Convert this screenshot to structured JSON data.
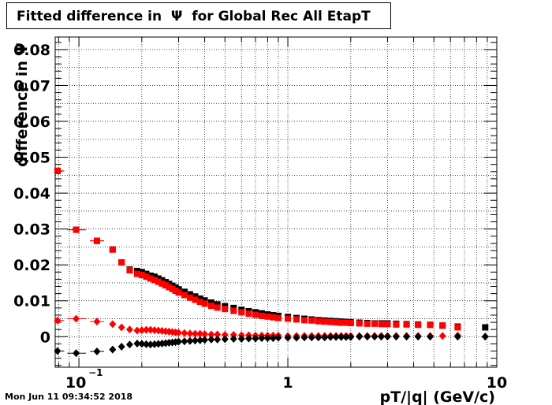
{
  "title": "Fitted difference in  Ψ  for Global Rec All EtapT",
  "footer": "Mon Jun 11 09:34:52 2018",
  "chart_data": {
    "type": "scatter",
    "title": "Fitted difference in  Ψ  for Global Rec All EtapT",
    "xlabel": "pT/|q| (GeV/c)",
    "ylabel": "difference in  Ψ",
    "xscale": "log",
    "xlim": [
      0.077,
      10
    ],
    "ylim": [
      -0.0085,
      0.0835
    ],
    "x_ticks": [
      {
        "value": 0.1,
        "label": "10",
        "sup": "−1"
      },
      {
        "value": 1,
        "label": "1"
      },
      {
        "value": 10,
        "label": "10"
      }
    ],
    "y_ticks": [
      {
        "value": 0,
        "label": "0"
      },
      {
        "value": 0.01,
        "label": "0.01"
      },
      {
        "value": 0.02,
        "label": "0.02"
      },
      {
        "value": 0.03,
        "label": "0.03"
      },
      {
        "value": 0.04,
        "label": "0.04"
      },
      {
        "value": 0.05,
        "label": "0.05"
      },
      {
        "value": 0.06,
        "label": "0.06"
      },
      {
        "value": 0.07,
        "label": "0.07"
      },
      {
        "value": 0.08,
        "label": "0.08"
      }
    ],
    "grid": true,
    "series": [
      {
        "color": "#000000",
        "marker": "square",
        "points": [
          {
            "x": 0.079,
            "y": 0.0462
          },
          {
            "x": 0.097,
            "y": 0.0298
          },
          {
            "x": 0.122,
            "y": 0.0267
          },
          {
            "x": 0.145,
            "y": 0.0243
          },
          {
            "x": 0.16,
            "y": 0.0207
          },
          {
            "x": 0.175,
            "y": 0.0187
          },
          {
            "x": 0.19,
            "y": 0.0183
          },
          {
            "x": 0.2,
            "y": 0.018
          },
          {
            "x": 0.21,
            "y": 0.0175
          },
          {
            "x": 0.22,
            "y": 0.017
          },
          {
            "x": 0.23,
            "y": 0.0167
          },
          {
            "x": 0.24,
            "y": 0.0162
          },
          {
            "x": 0.25,
            "y": 0.0157
          },
          {
            "x": 0.26,
            "y": 0.0152
          },
          {
            "x": 0.27,
            "y": 0.0147
          },
          {
            "x": 0.28,
            "y": 0.0142
          },
          {
            "x": 0.29,
            "y": 0.0137
          },
          {
            "x": 0.3,
            "y": 0.0132
          },
          {
            "x": 0.32,
            "y": 0.0125
          },
          {
            "x": 0.34,
            "y": 0.0118
          },
          {
            "x": 0.36,
            "y": 0.0112
          },
          {
            "x": 0.38,
            "y": 0.0106
          },
          {
            "x": 0.4,
            "y": 0.0101
          },
          {
            "x": 0.43,
            "y": 0.0095
          },
          {
            "x": 0.46,
            "y": 0.009
          },
          {
            "x": 0.5,
            "y": 0.0085
          },
          {
            "x": 0.55,
            "y": 0.008
          },
          {
            "x": 0.6,
            "y": 0.0075
          },
          {
            "x": 0.65,
            "y": 0.0071
          },
          {
            "x": 0.7,
            "y": 0.0068
          },
          {
            "x": 0.75,
            "y": 0.0065
          },
          {
            "x": 0.8,
            "y": 0.0062
          },
          {
            "x": 0.85,
            "y": 0.006
          },
          {
            "x": 0.9,
            "y": 0.0058
          },
          {
            "x": 1.0,
            "y": 0.0055
          },
          {
            "x": 1.1,
            "y": 0.0052
          },
          {
            "x": 1.2,
            "y": 0.005
          },
          {
            "x": 1.3,
            "y": 0.0048
          },
          {
            "x": 1.4,
            "y": 0.0046
          },
          {
            "x": 1.5,
            "y": 0.0045
          },
          {
            "x": 1.6,
            "y": 0.0044
          },
          {
            "x": 1.7,
            "y": 0.0043
          },
          {
            "x": 1.8,
            "y": 0.0042
          },
          {
            "x": 1.9,
            "y": 0.0041
          },
          {
            "x": 2.0,
            "y": 0.004
          },
          {
            "x": 2.2,
            "y": 0.0039
          },
          {
            "x": 2.4,
            "y": 0.0038
          },
          {
            "x": 2.6,
            "y": 0.0037
          },
          {
            "x": 2.8,
            "y": 0.0037
          },
          {
            "x": 3.0,
            "y": 0.0037
          },
          {
            "x": 3.3,
            "y": 0.0036
          },
          {
            "x": 3.7,
            "y": 0.0035
          },
          {
            "x": 4.2,
            "y": 0.0034
          },
          {
            "x": 4.8,
            "y": 0.0033
          },
          {
            "x": 5.5,
            "y": 0.0031
          },
          {
            "x": 6.5,
            "y": 0.0028
          },
          {
            "x": 8.8,
            "y": 0.0026
          }
        ],
        "xerr_points": [
          {
            "x": 0.079,
            "lo": 0.077,
            "hi": 0.085
          },
          {
            "x": 0.097,
            "lo": 0.088,
            "hi": 0.108
          },
          {
            "x": 0.122,
            "lo": 0.113,
            "hi": 0.132
          }
        ]
      },
      {
        "color": "#ff0000",
        "marker": "square",
        "points": [
          {
            "x": 0.079,
            "y": 0.0462
          },
          {
            "x": 0.097,
            "y": 0.0298
          },
          {
            "x": 0.122,
            "y": 0.0267
          },
          {
            "x": 0.145,
            "y": 0.0243
          },
          {
            "x": 0.16,
            "y": 0.0207
          },
          {
            "x": 0.175,
            "y": 0.0185
          },
          {
            "x": 0.19,
            "y": 0.0175
          },
          {
            "x": 0.2,
            "y": 0.0172
          },
          {
            "x": 0.21,
            "y": 0.0167
          },
          {
            "x": 0.22,
            "y": 0.0162
          },
          {
            "x": 0.23,
            "y": 0.0158
          },
          {
            "x": 0.24,
            "y": 0.0153
          },
          {
            "x": 0.25,
            "y": 0.0148
          },
          {
            "x": 0.26,
            "y": 0.0143
          },
          {
            "x": 0.27,
            "y": 0.0138
          },
          {
            "x": 0.28,
            "y": 0.0133
          },
          {
            "x": 0.29,
            "y": 0.0128
          },
          {
            "x": 0.3,
            "y": 0.0123
          },
          {
            "x": 0.32,
            "y": 0.0116
          },
          {
            "x": 0.34,
            "y": 0.0109
          },
          {
            "x": 0.36,
            "y": 0.0103
          },
          {
            "x": 0.38,
            "y": 0.0097
          },
          {
            "x": 0.4,
            "y": 0.0092
          },
          {
            "x": 0.43,
            "y": 0.0086
          },
          {
            "x": 0.46,
            "y": 0.0081
          },
          {
            "x": 0.5,
            "y": 0.0077
          },
          {
            "x": 0.55,
            "y": 0.0072
          },
          {
            "x": 0.6,
            "y": 0.0068
          },
          {
            "x": 0.65,
            "y": 0.0064
          },
          {
            "x": 0.7,
            "y": 0.0061
          },
          {
            "x": 0.75,
            "y": 0.0058
          },
          {
            "x": 0.8,
            "y": 0.0056
          },
          {
            "x": 0.85,
            "y": 0.0054
          },
          {
            "x": 0.9,
            "y": 0.0052
          },
          {
            "x": 1.0,
            "y": 0.005
          },
          {
            "x": 1.1,
            "y": 0.0048
          },
          {
            "x": 1.2,
            "y": 0.0046
          },
          {
            "x": 1.3,
            "y": 0.0045
          },
          {
            "x": 1.4,
            "y": 0.0043
          },
          {
            "x": 1.5,
            "y": 0.0042
          },
          {
            "x": 1.6,
            "y": 0.0041
          },
          {
            "x": 1.7,
            "y": 0.004
          },
          {
            "x": 1.8,
            "y": 0.0039
          },
          {
            "x": 1.9,
            "y": 0.0039
          },
          {
            "x": 2.0,
            "y": 0.0038
          },
          {
            "x": 2.2,
            "y": 0.0037
          },
          {
            "x": 2.4,
            "y": 0.0036
          },
          {
            "x": 2.6,
            "y": 0.0036
          },
          {
            "x": 2.8,
            "y": 0.0035
          },
          {
            "x": 3.0,
            "y": 0.0035
          },
          {
            "x": 3.3,
            "y": 0.0034
          },
          {
            "x": 3.7,
            "y": 0.0034
          },
          {
            "x": 4.2,
            "y": 0.0033
          },
          {
            "x": 4.8,
            "y": 0.0033
          },
          {
            "x": 5.5,
            "y": 0.0031
          },
          {
            "x": 6.5,
            "y": 0.0026
          }
        ],
        "xerr_points": [
          {
            "x": 0.079,
            "lo": 0.077,
            "hi": 0.085
          },
          {
            "x": 0.097,
            "lo": 0.088,
            "hi": 0.108
          },
          {
            "x": 0.122,
            "lo": 0.113,
            "hi": 0.132
          }
        ]
      },
      {
        "color": "#ff0000",
        "marker": "diamond",
        "points": [
          {
            "x": 0.079,
            "y": 0.0045
          },
          {
            "x": 0.097,
            "y": 0.005
          },
          {
            "x": 0.122,
            "y": 0.0042
          },
          {
            "x": 0.145,
            "y": 0.0035
          },
          {
            "x": 0.16,
            "y": 0.0026
          },
          {
            "x": 0.175,
            "y": 0.002
          },
          {
            "x": 0.19,
            "y": 0.0017
          },
          {
            "x": 0.2,
            "y": 0.0018
          },
          {
            "x": 0.21,
            "y": 0.0019
          },
          {
            "x": 0.22,
            "y": 0.0019
          },
          {
            "x": 0.23,
            "y": 0.0018
          },
          {
            "x": 0.24,
            "y": 0.0017
          },
          {
            "x": 0.25,
            "y": 0.0016
          },
          {
            "x": 0.26,
            "y": 0.0015
          },
          {
            "x": 0.27,
            "y": 0.0014
          },
          {
            "x": 0.28,
            "y": 0.0013
          },
          {
            "x": 0.29,
            "y": 0.0012
          },
          {
            "x": 0.3,
            "y": 0.0011
          },
          {
            "x": 0.32,
            "y": 0.001
          },
          {
            "x": 0.34,
            "y": 0.0009
          },
          {
            "x": 0.36,
            "y": 0.0008
          },
          {
            "x": 0.38,
            "y": 0.0008
          },
          {
            "x": 0.4,
            "y": 0.0007
          },
          {
            "x": 0.43,
            "y": 0.0006
          },
          {
            "x": 0.46,
            "y": 0.0006
          },
          {
            "x": 0.5,
            "y": 0.0005
          },
          {
            "x": 0.55,
            "y": 0.0005
          },
          {
            "x": 0.6,
            "y": 0.0004
          },
          {
            "x": 0.65,
            "y": 0.0004
          },
          {
            "x": 0.7,
            "y": 0.0003
          },
          {
            "x": 0.75,
            "y": 0.0003
          },
          {
            "x": 0.8,
            "y": 0.0003
          },
          {
            "x": 0.85,
            "y": 0.0003
          },
          {
            "x": 0.9,
            "y": 0.0003
          },
          {
            "x": 1.0,
            "y": 0.0002
          },
          {
            "x": 1.1,
            "y": 0.0002
          },
          {
            "x": 1.2,
            "y": 0.0002
          },
          {
            "x": 1.3,
            "y": 0.0002
          },
          {
            "x": 1.4,
            "y": 0.0002
          },
          {
            "x": 1.5,
            "y": 0.0002
          },
          {
            "x": 1.6,
            "y": 0.0002
          },
          {
            "x": 1.7,
            "y": 0.0002
          },
          {
            "x": 1.8,
            "y": 0.0002
          },
          {
            "x": 1.9,
            "y": 0.0002
          },
          {
            "x": 2.0,
            "y": 0.0002
          },
          {
            "x": 2.2,
            "y": 0.0002
          },
          {
            "x": 2.4,
            "y": 0.0002
          },
          {
            "x": 2.6,
            "y": 0.0002
          },
          {
            "x": 2.8,
            "y": 0.0002
          },
          {
            "x": 3.0,
            "y": 0.0002
          },
          {
            "x": 3.3,
            "y": 0.0002
          },
          {
            "x": 3.7,
            "y": 0.0002
          },
          {
            "x": 4.2,
            "y": 0.0002
          },
          {
            "x": 4.8,
            "y": 0.0002
          },
          {
            "x": 5.5,
            "y": 0.0002
          },
          {
            "x": 6.5,
            "y": 0.0003
          }
        ],
        "xerr_points": [
          {
            "x": 0.079,
            "lo": 0.077,
            "hi": 0.085
          },
          {
            "x": 0.097,
            "lo": 0.088,
            "hi": 0.108
          },
          {
            "x": 0.122,
            "lo": 0.113,
            "hi": 0.132
          }
        ]
      },
      {
        "color": "#000000",
        "marker": "diamond",
        "points": [
          {
            "x": 0.079,
            "y": -0.004
          },
          {
            "x": 0.097,
            "y": -0.0046
          },
          {
            "x": 0.122,
            "y": -0.0041
          },
          {
            "x": 0.145,
            "y": -0.0036
          },
          {
            "x": 0.16,
            "y": -0.0028
          },
          {
            "x": 0.175,
            "y": -0.0022
          },
          {
            "x": 0.19,
            "y": -0.0019
          },
          {
            "x": 0.2,
            "y": -0.002
          },
          {
            "x": 0.21,
            "y": -0.0021
          },
          {
            "x": 0.22,
            "y": -0.0022
          },
          {
            "x": 0.23,
            "y": -0.0021
          },
          {
            "x": 0.24,
            "y": -0.002
          },
          {
            "x": 0.25,
            "y": -0.0019
          },
          {
            "x": 0.26,
            "y": -0.0018
          },
          {
            "x": 0.27,
            "y": -0.0017
          },
          {
            "x": 0.28,
            "y": -0.0016
          },
          {
            "x": 0.29,
            "y": -0.0015
          },
          {
            "x": 0.3,
            "y": -0.0014
          },
          {
            "x": 0.32,
            "y": -0.0013
          },
          {
            "x": 0.34,
            "y": -0.0012
          },
          {
            "x": 0.36,
            "y": -0.0011
          },
          {
            "x": 0.38,
            "y": -0.001
          },
          {
            "x": 0.4,
            "y": -0.0009
          },
          {
            "x": 0.43,
            "y": -0.0008
          },
          {
            "x": 0.46,
            "y": -0.0008
          },
          {
            "x": 0.5,
            "y": -0.0007
          },
          {
            "x": 0.55,
            "y": -0.0006
          },
          {
            "x": 0.6,
            "y": -0.0006
          },
          {
            "x": 0.65,
            "y": -0.0005
          },
          {
            "x": 0.7,
            "y": -0.0005
          },
          {
            "x": 0.75,
            "y": -0.0004
          },
          {
            "x": 0.8,
            "y": -0.0004
          },
          {
            "x": 0.85,
            "y": -0.0004
          },
          {
            "x": 0.9,
            "y": -0.0003
          },
          {
            "x": 1.0,
            "y": -0.0003
          },
          {
            "x": 1.1,
            "y": -0.0003
          },
          {
            "x": 1.2,
            "y": -0.0002
          },
          {
            "x": 1.3,
            "y": -0.0002
          },
          {
            "x": 1.4,
            "y": -0.0002
          },
          {
            "x": 1.5,
            "y": -0.0002
          },
          {
            "x": 1.6,
            "y": -0.0001
          },
          {
            "x": 1.7,
            "y": -0.0001
          },
          {
            "x": 1.8,
            "y": -0.0001
          },
          {
            "x": 1.9,
            "y": -0.0001
          },
          {
            "x": 2.0,
            "y": -0.0001
          },
          {
            "x": 2.2,
            "y": 0.0
          },
          {
            "x": 2.4,
            "y": 0.0
          },
          {
            "x": 2.6,
            "y": 0.0
          },
          {
            "x": 2.8,
            "y": 0.0
          },
          {
            "x": 3.0,
            "y": 0.0
          },
          {
            "x": 3.3,
            "y": 0.0
          },
          {
            "x": 3.7,
            "y": 0.0
          },
          {
            "x": 4.2,
            "y": 0.0
          },
          {
            "x": 4.8,
            "y": 0.0
          },
          {
            "x": 6.5,
            "y": 0.0
          },
          {
            "x": 8.8,
            "y": 0.0
          }
        ],
        "xerr_points": [
          {
            "x": 0.079,
            "lo": 0.077,
            "hi": 0.085
          },
          {
            "x": 0.097,
            "lo": 0.088,
            "hi": 0.108
          },
          {
            "x": 0.122,
            "lo": 0.113,
            "hi": 0.132
          }
        ]
      }
    ]
  }
}
